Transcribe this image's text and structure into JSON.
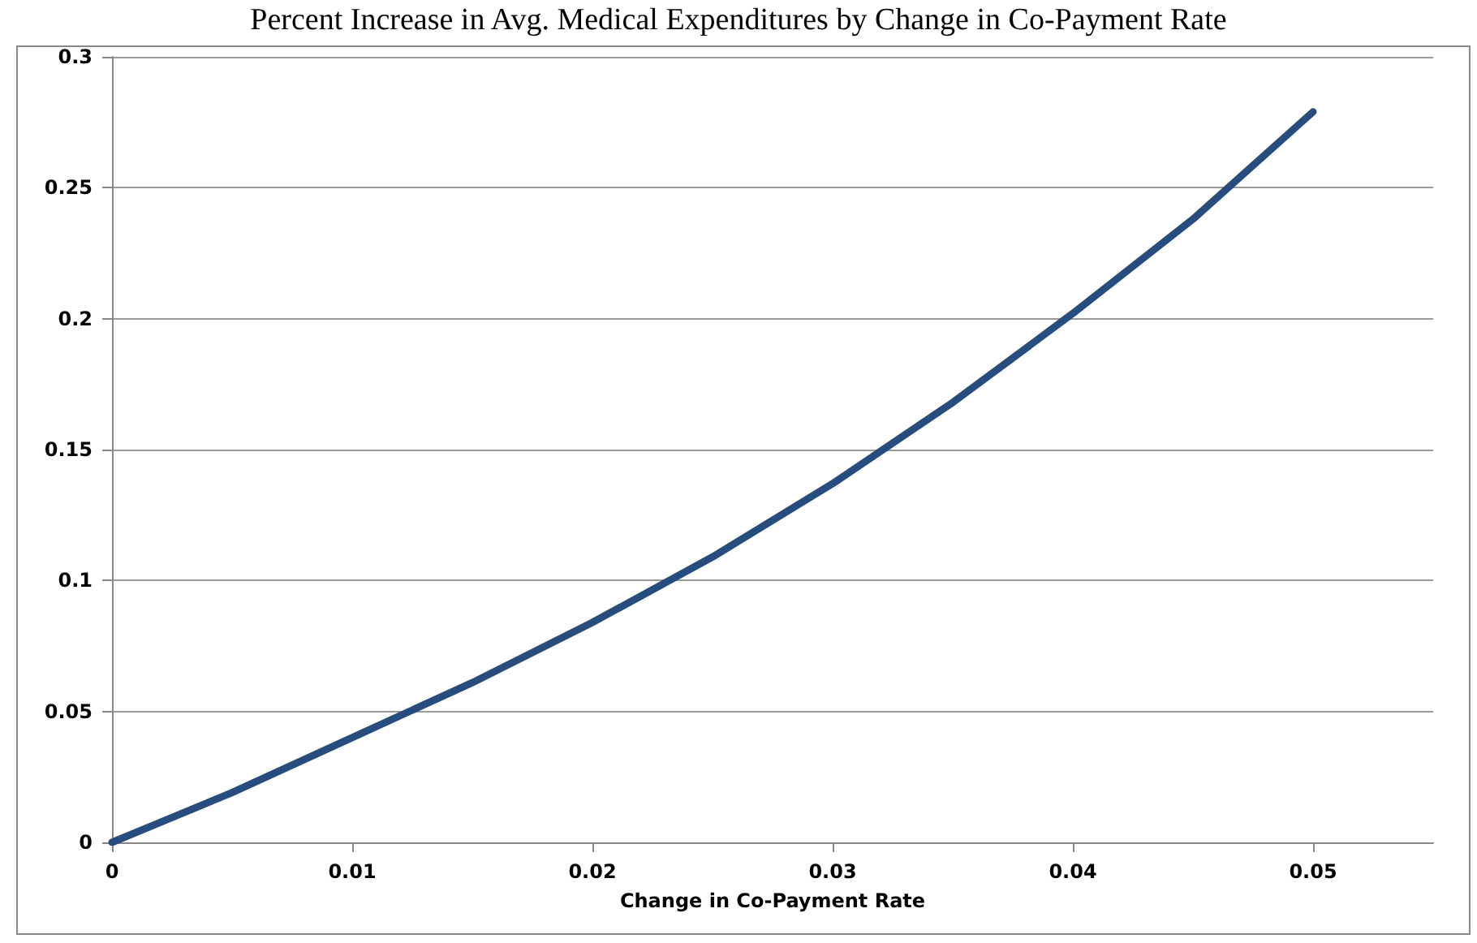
{
  "chart_data": {
    "type": "line",
    "title": "Percent Increase in Avg. Medical Expenditures by Change in Co-Payment Rate",
    "xlabel": "Change in Co-Payment Rate",
    "x": [
      0,
      0.005,
      0.01,
      0.015,
      0.02,
      0.025,
      0.03,
      0.035,
      0.04,
      0.045,
      0.05
    ],
    "series": [
      {
        "color": "#264d7e",
        "values": [
          0,
          0.019,
          0.04,
          0.061,
          0.084,
          0.109,
          0.137,
          0.168,
          0.202,
          0.238,
          0.279
        ]
      }
    ],
    "xlim": [
      0,
      0.055
    ],
    "xticks": [
      0,
      0.01,
      0.02,
      0.03,
      0.04,
      0.05
    ],
    "ylim": [
      0,
      0.3
    ],
    "yticks": [
      0,
      0.05,
      0.1,
      0.15,
      0.2,
      0.25,
      0.3
    ],
    "grid": "y",
    "marker": "none",
    "line_style": "solid"
  }
}
